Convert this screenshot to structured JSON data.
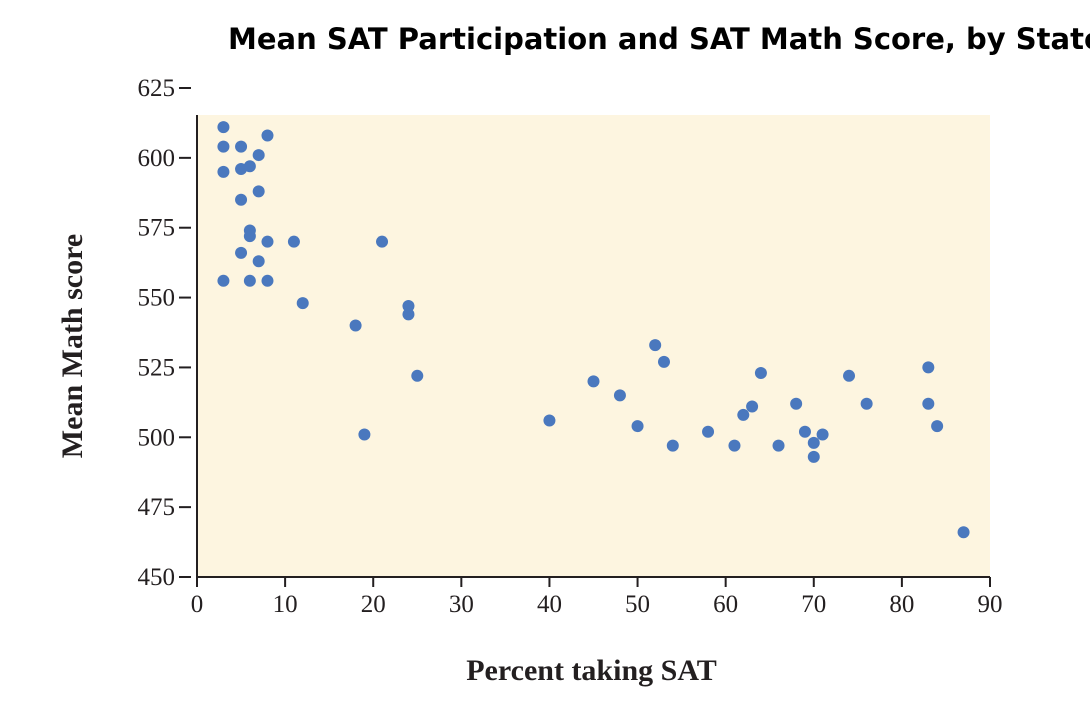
{
  "chart_data": {
    "type": "scatter",
    "title": "Mean SAT Participation and SAT Math Score, by State",
    "xlabel": "Percent taking SAT",
    "ylabel": "Mean Math score",
    "xlim": [
      0,
      90
    ],
    "ylim": [
      450,
      625
    ],
    "xticks": [
      0,
      10,
      20,
      30,
      40,
      50,
      60,
      70,
      80,
      90
    ],
    "yticks": [
      450,
      475,
      500,
      525,
      550,
      575,
      600,
      625
    ],
    "grid": false,
    "background_color": "#fdf5e0",
    "marker_color": "#4a78be",
    "series": [
      {
        "points": [
          [
            3,
            611
          ],
          [
            3,
            604
          ],
          [
            3,
            595
          ],
          [
            3,
            556
          ],
          [
            5,
            604
          ],
          [
            5,
            596
          ],
          [
            5,
            585
          ],
          [
            5,
            566
          ],
          [
            6,
            597
          ],
          [
            6,
            574
          ],
          [
            6,
            572
          ],
          [
            6,
            556
          ],
          [
            7,
            601
          ],
          [
            7,
            588
          ],
          [
            7,
            563
          ],
          [
            8,
            608
          ],
          [
            8,
            570
          ],
          [
            8,
            556
          ],
          [
            11,
            570
          ],
          [
            12,
            548
          ],
          [
            18,
            540
          ],
          [
            19,
            501
          ],
          [
            21,
            570
          ],
          [
            24,
            547
          ],
          [
            24,
            544
          ],
          [
            25,
            522
          ],
          [
            40,
            506
          ],
          [
            45,
            520
          ],
          [
            48,
            515
          ],
          [
            50,
            504
          ],
          [
            52,
            533
          ],
          [
            53,
            527
          ],
          [
            54,
            497
          ],
          [
            58,
            502
          ],
          [
            61,
            497
          ],
          [
            62,
            508
          ],
          [
            63,
            511
          ],
          [
            64,
            523
          ],
          [
            66,
            497
          ],
          [
            68,
            512
          ],
          [
            69,
            502
          ],
          [
            70,
            498
          ],
          [
            70,
            493
          ],
          [
            71,
            501
          ],
          [
            74,
            522
          ],
          [
            76,
            512
          ],
          [
            83,
            525
          ],
          [
            83,
            512
          ],
          [
            84,
            504
          ],
          [
            87,
            466
          ]
        ]
      }
    ]
  }
}
